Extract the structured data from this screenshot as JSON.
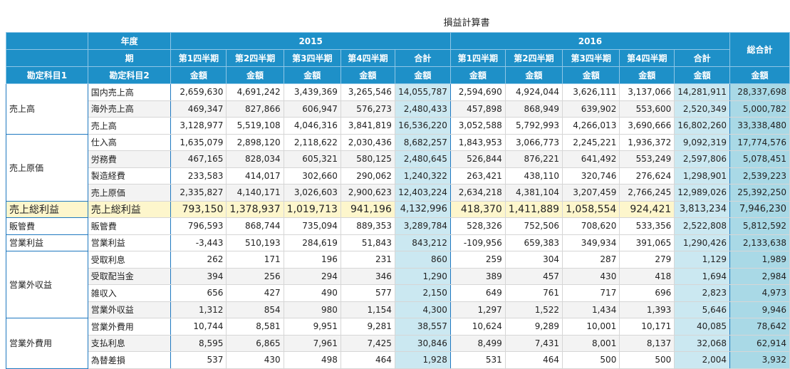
{
  "title": "損益計算書",
  "table": {
    "header": {
      "year_label": "年度",
      "period_label": "期",
      "account1": "勘定科目1",
      "account2": "勘定科目2",
      "years": [
        {
          "year": "2015",
          "periods": [
            "第1四半期",
            "第2四半期",
            "第3四半期",
            "第4四半期",
            "合計"
          ],
          "amounts": [
            "金額",
            "金額",
            "金額",
            "金額",
            "金額"
          ]
        },
        {
          "year": "2016",
          "periods": [
            "第1四半期",
            "第2四半期",
            "第3四半期",
            "第4四半期",
            "合計"
          ],
          "amounts": [
            "金額",
            "金額",
            "金額",
            "金額",
            "金額"
          ]
        }
      ],
      "grand_total": "総合計",
      "grand_amount": "金額"
    },
    "groups": [
      {
        "label": "売上高",
        "rows": [
          {
            "subject": "国内売上高",
            "values": [
              "2,659,630",
              "4,691,242",
              "3,439,369",
              "3,265,546",
              "14,055,787",
              "2,594,690",
              "4,924,044",
              "3,626,111",
              "3,137,066",
              "14,281,911",
              "28,337,698"
            ]
          },
          {
            "subject": "海外売上高",
            "values": [
              "469,347",
              "827,866",
              "606,947",
              "576,273",
              "2,480,433",
              "457,898",
              "868,949",
              "639,902",
              "553,600",
              "2,520,349",
              "5,000,782"
            ]
          },
          {
            "subject": "売上高",
            "values": [
              "3,128,977",
              "5,519,108",
              "4,046,316",
              "3,841,819",
              "16,536,220",
              "3,052,588",
              "5,792,993",
              "4,266,013",
              "3,690,666",
              "16,802,260",
              "33,338,480"
            ]
          }
        ]
      },
      {
        "label": "売上原価",
        "rows": [
          {
            "subject": "仕入高",
            "values": [
              "1,635,079",
              "2,898,120",
              "2,118,622",
              "2,030,436",
              "8,682,257",
              "1,843,953",
              "3,066,773",
              "2,245,221",
              "1,936,372",
              "9,092,319",
              "17,774,576"
            ]
          },
          {
            "subject": "労務費",
            "values": [
              "467,165",
              "828,034",
              "605,321",
              "580,125",
              "2,480,645",
              "526,844",
              "876,221",
              "641,492",
              "553,249",
              "2,597,806",
              "5,078,451"
            ]
          },
          {
            "subject": "製造経費",
            "values": [
              "233,583",
              "414,017",
              "302,660",
              "290,062",
              "1,240,322",
              "263,421",
              "438,110",
              "320,746",
              "276,624",
              "1,298,901",
              "2,539,223"
            ]
          },
          {
            "subject": "売上原価",
            "values": [
              "2,335,827",
              "4,140,171",
              "3,026,603",
              "2,900,623",
              "12,403,224",
              "2,634,218",
              "4,381,104",
              "3,207,459",
              "2,766,245",
              "12,989,026",
              "25,392,250"
            ]
          }
        ]
      },
      {
        "label": "売上総利益",
        "highlight": true,
        "rows": [
          {
            "subject": "売上総利益",
            "values": [
              "793,150",
              "1,378,937",
              "1,019,713",
              "941,196",
              "4,132,996",
              "418,370",
              "1,411,889",
              "1,058,554",
              "924,421",
              "3,813,234",
              "7,946,230"
            ]
          }
        ]
      },
      {
        "label": "販管費",
        "rows": [
          {
            "subject": "販管費",
            "values": [
              "796,593",
              "868,744",
              "735,094",
              "889,353",
              "3,289,784",
              "528,326",
              "752,506",
              "708,620",
              "533,356",
              "2,522,808",
              "5,812,592"
            ]
          }
        ]
      },
      {
        "label": "営業利益",
        "rows": [
          {
            "subject": "営業利益",
            "values": [
              "-3,443",
              "510,193",
              "284,619",
              "51,843",
              "843,212",
              "-109,956",
              "659,383",
              "349,934",
              "391,065",
              "1,290,426",
              "2,133,638"
            ]
          }
        ]
      },
      {
        "label": "営業外収益",
        "rows": [
          {
            "subject": "受取利息",
            "values": [
              "262",
              "171",
              "196",
              "231",
              "860",
              "259",
              "304",
              "287",
              "279",
              "1,129",
              "1,989"
            ]
          },
          {
            "subject": "受取配当金",
            "values": [
              "394",
              "256",
              "294",
              "346",
              "1,290",
              "389",
              "457",
              "430",
              "418",
              "1,694",
              "2,984"
            ]
          },
          {
            "subject": "雑収入",
            "values": [
              "656",
              "427",
              "490",
              "577",
              "2,150",
              "649",
              "761",
              "717",
              "696",
              "2,823",
              "4,973"
            ]
          },
          {
            "subject": "営業外収益",
            "values": [
              "1,312",
              "854",
              "980",
              "1,154",
              "4,300",
              "1,297",
              "1,522",
              "1,434",
              "1,393",
              "5,646",
              "9,946"
            ]
          }
        ]
      },
      {
        "label": "営業外費用",
        "rows": [
          {
            "subject": "営業外費用",
            "values": [
              "10,744",
              "8,581",
              "9,951",
              "9,281",
              "38,557",
              "10,624",
              "9,289",
              "10,001",
              "10,171",
              "40,085",
              "78,642"
            ]
          },
          {
            "subject": "支払利息",
            "values": [
              "8,595",
              "6,865",
              "7,961",
              "7,425",
              "30,846",
              "8,499",
              "7,431",
              "8,001",
              "8,137",
              "32,068",
              "62,914"
            ]
          },
          {
            "subject": "為替差損",
            "values": [
              "537",
              "430",
              "498",
              "464",
              "1,928",
              "531",
              "464",
              "500",
              "500",
              "2,004",
              "3,932"
            ]
          }
        ]
      }
    ]
  }
}
